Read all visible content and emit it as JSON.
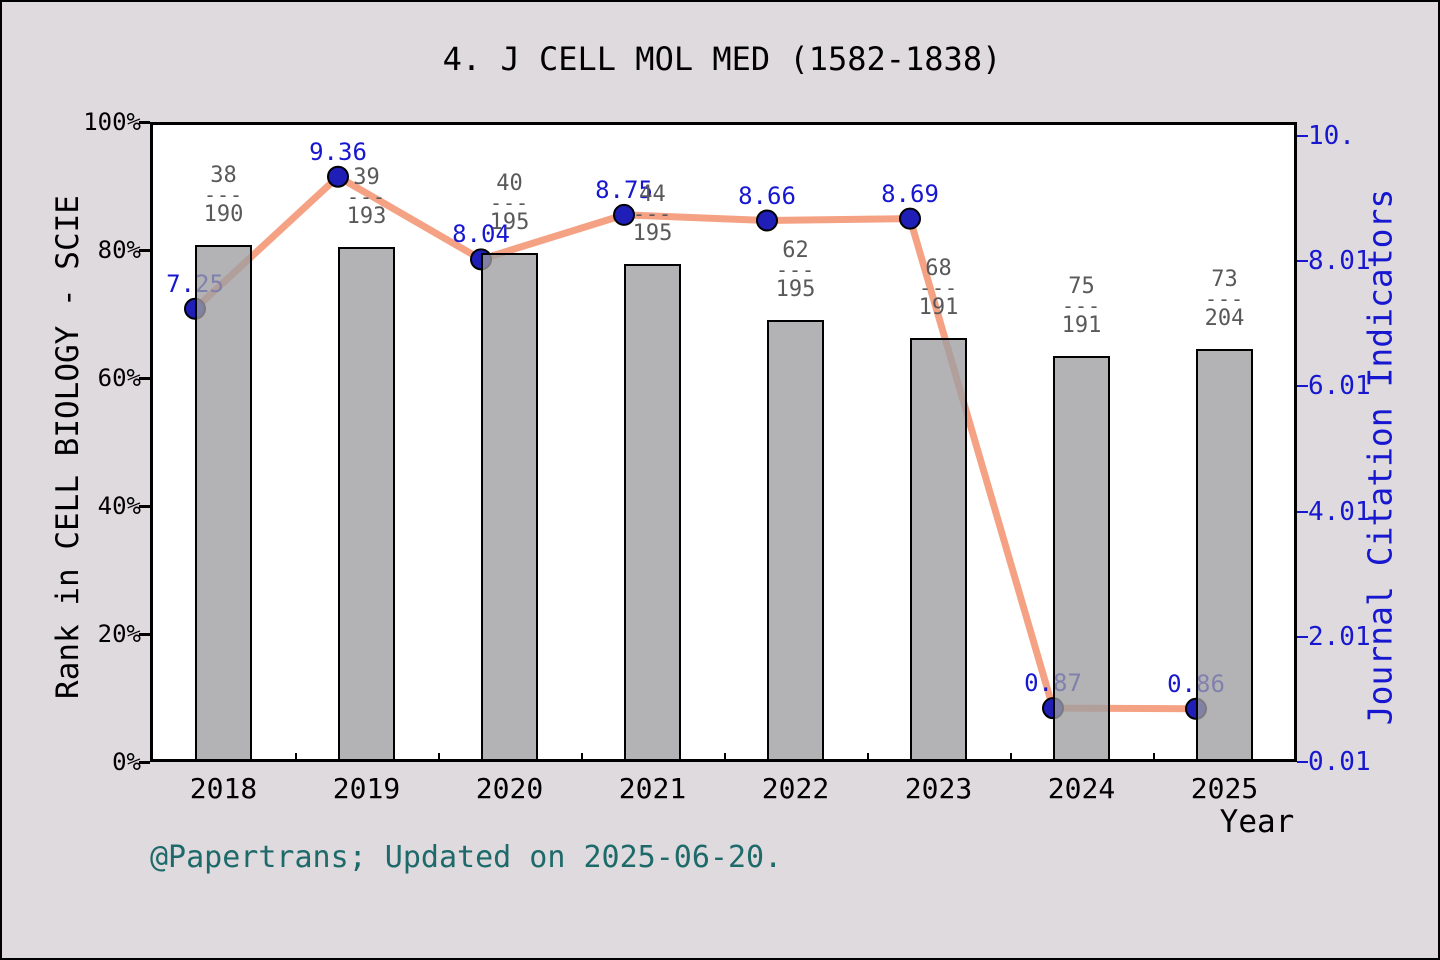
{
  "title": "4. J CELL MOL MED (1582-1838)",
  "footer": "@Papertrans; Updated on 2025-06-20.",
  "axes": {
    "left": {
      "title": "Rank in CELL BIOLOGY - SCIE",
      "tick_labels": [
        "100%",
        "80%",
        "60%",
        "40%",
        "20%",
        "0%"
      ],
      "color": "#000000"
    },
    "right": {
      "title": "Journal Citation Indicators",
      "tick_labels": [
        "10.",
        "8.01",
        "6.01",
        "4.01",
        "2.01",
        "0.01"
      ],
      "color": "#1717cf"
    },
    "x": {
      "title": "Year",
      "tick_labels": [
        "2018",
        "2019",
        "2020",
        "2021",
        "2022",
        "2023",
        "2024",
        "2025"
      ]
    }
  },
  "chart_data": {
    "type": "bar+line",
    "title": "4. J CELL MOL MED (1582-1838)",
    "categories": [
      "2018",
      "2019",
      "2020",
      "2021",
      "2022",
      "2023",
      "2024",
      "2025"
    ],
    "series": [
      {
        "name": "Rank in CELL BIOLOGY - SCIE",
        "type": "bar",
        "axis": "left",
        "rank": [
          38,
          39,
          40,
          44,
          62,
          68,
          75,
          73
        ],
        "total": [
          190,
          193,
          195,
          195,
          195,
          191,
          191,
          204
        ],
        "fraction_labels": [
          "38/190",
          "39/193",
          "40/195",
          "44/195",
          "62/195",
          "68/191",
          "75/191",
          "73/204"
        ],
        "percentile_pct": [
          80.8,
          80.4,
          79.5,
          77.8,
          69.1,
          66.3,
          63.4,
          64.5
        ]
      },
      {
        "name": "Journal Citation Indicators",
        "type": "line",
        "axis": "right",
        "values": [
          7.25,
          9.36,
          8.04,
          8.75,
          8.66,
          8.69,
          0.87,
          0.86
        ],
        "value_labels": [
          "7.25",
          "9.36",
          "8.04",
          "8.75",
          "8.66",
          "8.69",
          "0.87",
          "0.86"
        ]
      }
    ],
    "xlabel": "Year",
    "ylabel_left": "Rank in CELL BIOLOGY - SCIE",
    "ylabel_right": "Journal Citation Indicators",
    "ylim_left": [
      0,
      100
    ],
    "yticks_right": [
      0.01,
      2.01,
      4.01,
      6.01,
      8.01,
      10.01
    ],
    "grid": false,
    "legend": false
  },
  "colors": {
    "background": "#dedade",
    "plot_background": "#ffffff",
    "bar_fill": "rgba(158,158,162,0.78)",
    "bar_edge": "#000000",
    "line": "#f5a284",
    "marker": "#1f1fb8",
    "marker_edge": "#000000",
    "value_label": "#1717cf",
    "fraction_label": "#59595b",
    "footer": "#1e6a6a"
  }
}
